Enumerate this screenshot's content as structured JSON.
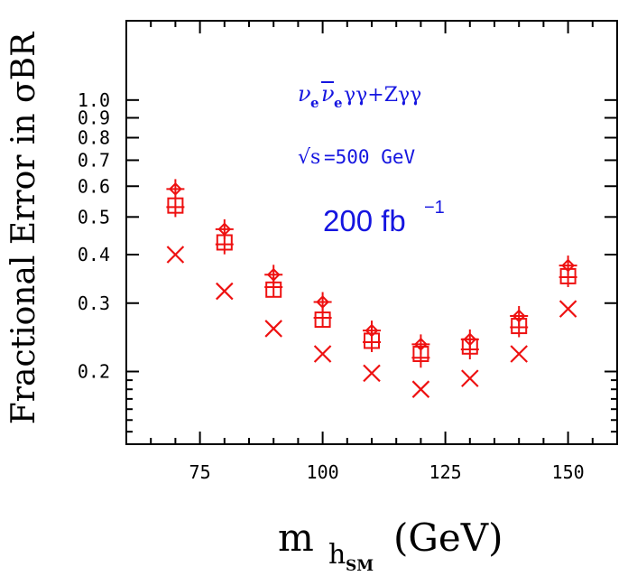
{
  "chart_data": {
    "type": "scatter",
    "title": "",
    "ylabel": "Fractional Error in σBR",
    "xlabel": {
      "main": "m",
      "sub": "h",
      "subsub": "SM",
      "unit": "(GeV)"
    },
    "x_scale": "linear",
    "y_scale": "log",
    "xlim": [
      60,
      160
    ],
    "ylim": [
      0.13,
      1.6
    ],
    "x_ticks": [
      75,
      100,
      125,
      150
    ],
    "x_tick_labels": [
      "75",
      "100",
      "125",
      "150"
    ],
    "y_ticks": [
      0.2,
      0.3,
      0.4,
      0.5,
      0.6,
      0.7,
      0.8,
      0.9,
      1.0
    ],
    "y_tick_labels": [
      "0.2",
      "0.3",
      "0.4",
      "0.5",
      "0.6",
      "0.7",
      "0.8",
      "0.9",
      "1.0"
    ],
    "x": [
      70,
      80,
      90,
      100,
      110,
      120,
      130,
      140,
      150
    ],
    "series": [
      {
        "name": "diamond-cross",
        "marker": "diamond-cross",
        "values": [
          0.59,
          0.465,
          0.355,
          0.302,
          0.255,
          0.235,
          0.242,
          0.278,
          0.375
        ]
      },
      {
        "name": "boxed-cross",
        "marker": "boxed-cross",
        "values": [
          0.53,
          0.425,
          0.33,
          0.275,
          0.238,
          0.217,
          0.228,
          0.26,
          0.35
        ]
      },
      {
        "name": "open-square",
        "marker": "square",
        "values": [
          0.535,
          0.43,
          0.325,
          0.272,
          0.24,
          0.222,
          0.232,
          0.262,
          0.352
        ]
      },
      {
        "name": "x-cross",
        "marker": "x",
        "values": [
          0.4,
          0.322,
          0.258,
          0.222,
          0.198,
          0.18,
          0.192,
          0.222,
          0.29
        ]
      }
    ],
    "annotations": {
      "process": {
        "nu": "ν",
        "sub_e": "e",
        "nu_bar": "ν",
        "sub_e2": "e",
        "rest": "γγ+Zγγ"
      },
      "energy": {
        "sqrt": "√s",
        "value": "=500 GeV"
      },
      "luminosity": {
        "value": "200 fb",
        "exponent": "−1"
      }
    },
    "colors": {
      "markers": "#ee1111",
      "annotation": "#1515e0",
      "axes": "#000000"
    }
  }
}
